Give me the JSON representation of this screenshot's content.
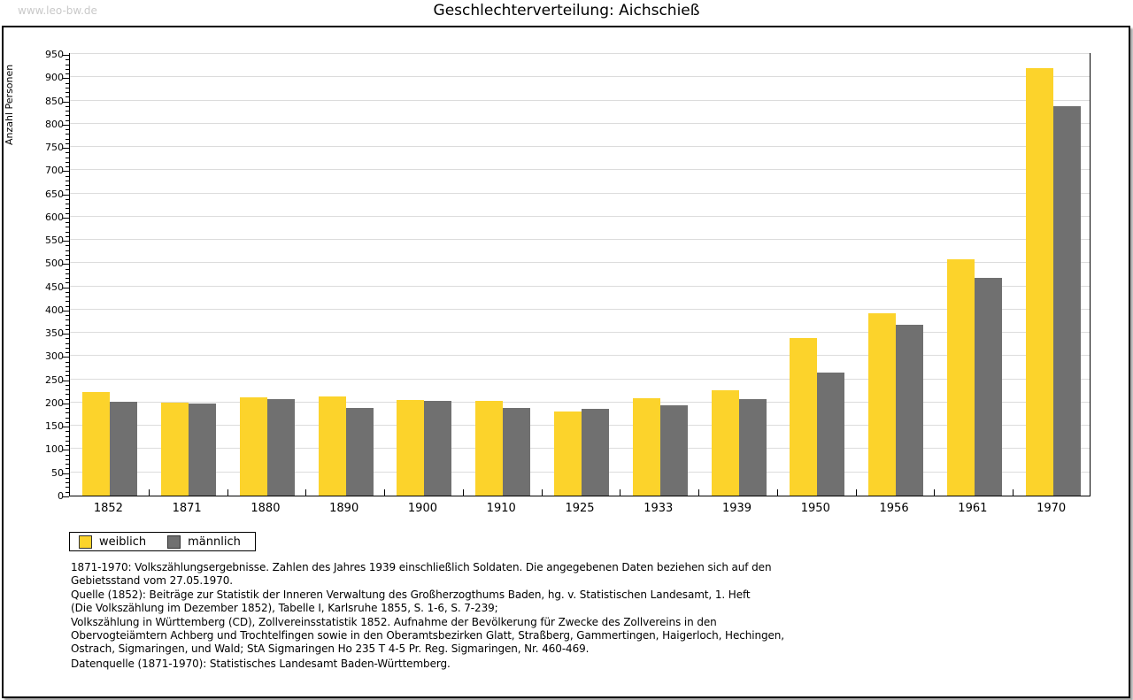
{
  "page": {
    "watermark": "www.leo-bw.de",
    "title": "Geschlechterverteilung: Aichschieß"
  },
  "chart_data": {
    "type": "bar",
    "title": "Geschlechterverteilung: Aichschieß",
    "xlabel": "",
    "ylabel": "Anzahl Personen",
    "ylim": [
      0,
      950
    ],
    "ytick_step": 50,
    "ytick_minor_step": 10,
    "grid": true,
    "legend_position": "bottom-left",
    "categories": [
      "1852",
      "1871",
      "1880",
      "1890",
      "1900",
      "1910",
      "1925",
      "1933",
      "1939",
      "1950",
      "1956",
      "1961",
      "1970"
    ],
    "series": [
      {
        "name": "weiblich",
        "color": "#FCD32B",
        "values": [
          223,
          199,
          212,
          214,
          206,
          204,
          180,
          210,
          227,
          339,
          393,
          508,
          919
        ]
      },
      {
        "name": "männlich",
        "color": "#707070",
        "values": [
          201,
          198,
          207,
          188,
          204,
          189,
          186,
          194,
          207,
          265,
          368,
          468,
          838
        ]
      }
    ]
  },
  "legend": {
    "items": [
      {
        "label": "weiblich",
        "color": "#FCD32B"
      },
      {
        "label": "männlich",
        "color": "#707070"
      }
    ]
  },
  "footnotes": {
    "lines": [
      "1871-1970: Volkszählungsergebnisse. Zahlen des Jahres 1939 einschließlich Soldaten. Die angegebenen Daten beziehen sich auf den",
      "Gebietsstand vom 27.05.1970.",
      "Quelle (1852): Beiträge zur Statistik der Inneren Verwaltung des Großherzogthums Baden, hg. v. Statistischen Landesamt, 1. Heft",
      "(Die Volkszählung im Dezember 1852), Tabelle I, Karlsruhe 1855, S. 1-6, S. 7-239;",
      "Volkszählung in Württemberg (CD), Zollvereinsstatistik 1852. Aufnahme der Bevölkerung für Zwecke des Zollvereins in den",
      "Obervogteiämtern Achberg und Trochtelfingen sowie in den Oberamtsbezirken Glatt, Straßberg, Gammertingen, Haigerloch, Hechingen,",
      "Ostrach, Sigmaringen, und Wald; StA Sigmaringen Ho 235 T 4-5 Pr. Reg. Sigmaringen, Nr. 460-469."
    ],
    "datasource": "Datenquelle (1871-1970): Statistisches Landesamt Baden-Württemberg."
  }
}
